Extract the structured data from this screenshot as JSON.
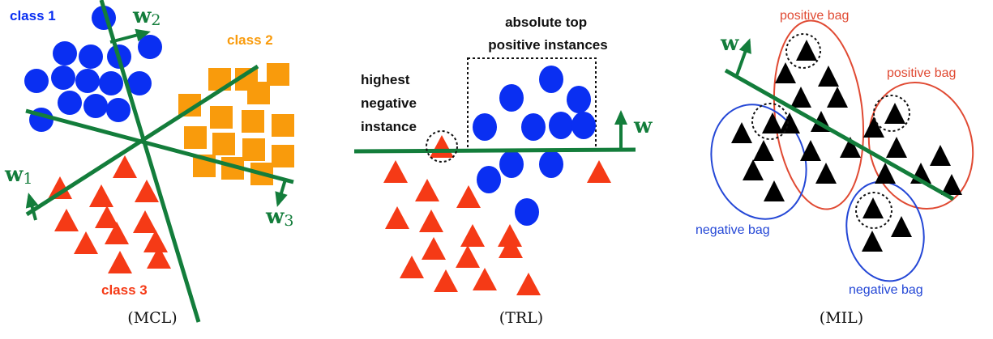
{
  "colors": {
    "blue": "#0a2ff2",
    "orange": "#f99b0c",
    "red": "#f53a16",
    "green": "#137d3b",
    "bag_red": "#e04a33",
    "bag_blue": "#2447d6",
    "black": "#000000"
  },
  "mcl": {
    "class1_label": "class 1",
    "class2_label": "class 2",
    "class3_label": "class 3",
    "w1_label": "w",
    "w1_sub": "1",
    "w2_label": "w",
    "w2_sub": "2",
    "w3_label": "w",
    "w3_sub": "3",
    "caption": "(MCL)"
  },
  "trl": {
    "highest_label_lines": [
      "highest",
      "negative",
      "instance"
    ],
    "top_label_lines": [
      "absolute top",
      "positive instances"
    ],
    "w_label": "w",
    "caption": "(TRL)"
  },
  "mil": {
    "positive_bag_label_1": "positive bag",
    "positive_bag_label_2": "positive bag",
    "negative_bag_label_1": "negative bag",
    "negative_bag_label_2": "negative bag",
    "w_label": "w",
    "caption": "(MIL)"
  }
}
